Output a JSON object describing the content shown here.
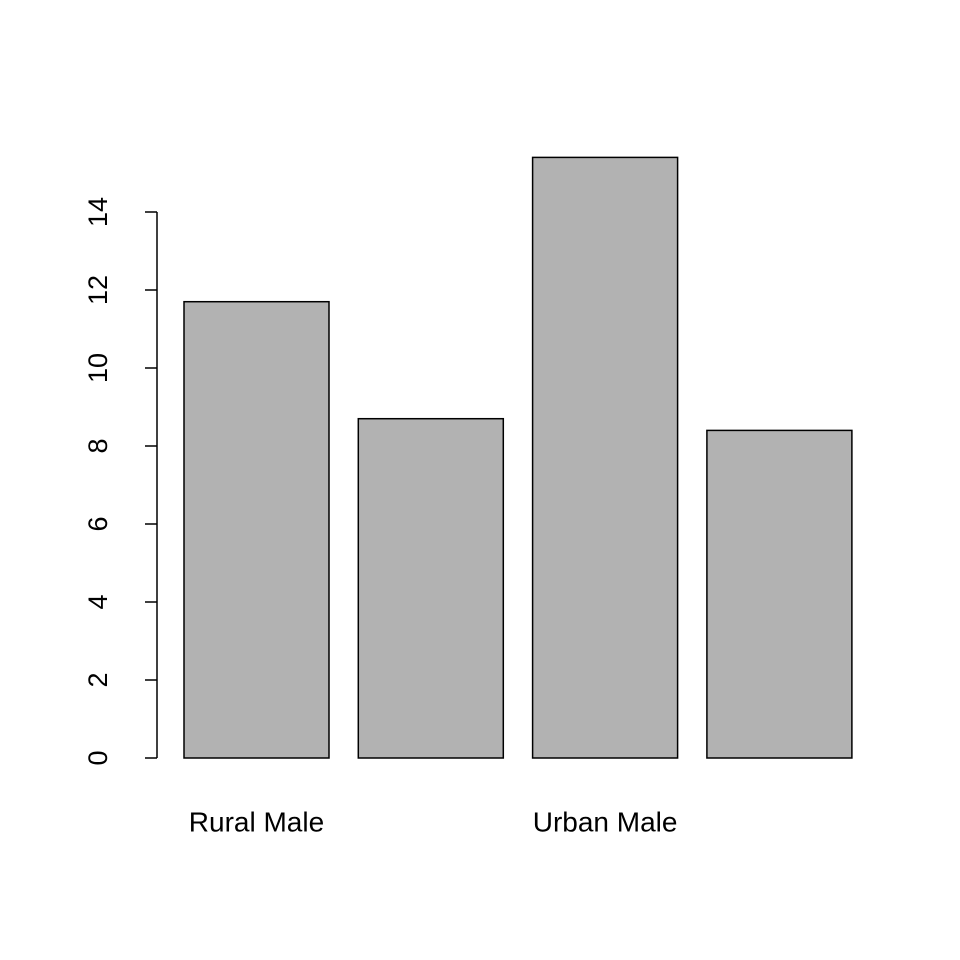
{
  "chart_data": {
    "type": "bar",
    "categories": [
      "Rural Male",
      null,
      "Urban Male",
      null
    ],
    "values": [
      11.7,
      8.7,
      15.4,
      8.4
    ],
    "color": "#b2b2b2",
    "ylim": [
      0,
      15.4
    ],
    "yticks": [
      0,
      2,
      4,
      6,
      8,
      10,
      12,
      14
    ],
    "grid": false
  }
}
